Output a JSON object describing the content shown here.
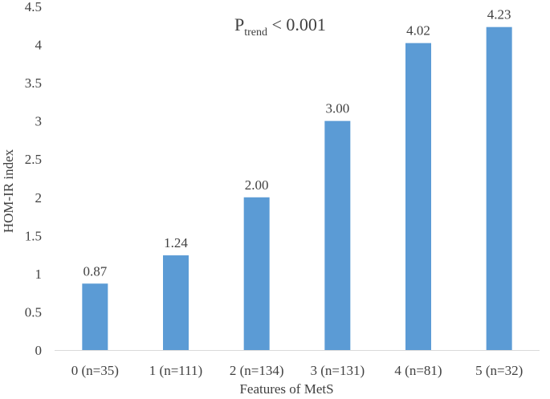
{
  "chart_data": {
    "type": "bar",
    "title": "",
    "xlabel": "Features of MetS",
    "ylabel": "HOM-IR  index",
    "categories": [
      "0 (n=35)",
      "1 (n=111)",
      "2 (n=134)",
      "3 (n=131)",
      "4 (n=81)",
      "5 (n=32)"
    ],
    "values": [
      0.87,
      1.24,
      2.0,
      3.0,
      4.02,
      4.23
    ],
    "value_labels": [
      "0.87",
      "1.24",
      "2.00",
      "3.00",
      "4.02",
      "4.23"
    ],
    "ylim": [
      0,
      4.5
    ],
    "yticks": [
      "0",
      "0.5",
      "1",
      "1.5",
      "2",
      "2.5",
      "3",
      "3.5",
      "4",
      "4.5"
    ],
    "annotation": {
      "main": "P",
      "subscript": "trend",
      "rest": " < 0.001"
    },
    "grid": false,
    "legend": "none",
    "bar_color": "#5B9BD5"
  }
}
